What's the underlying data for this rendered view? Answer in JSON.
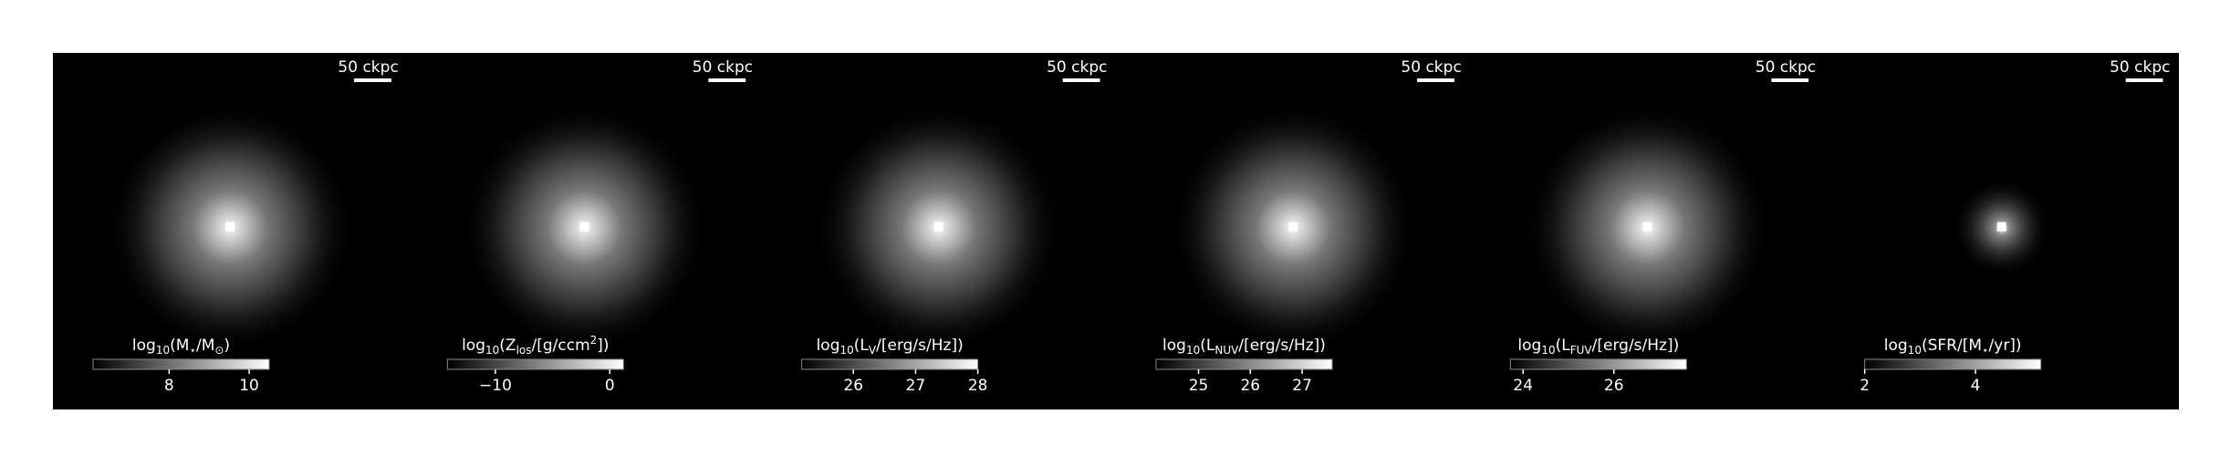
{
  "panels": [
    {
      "scale_label": "50 ckpc",
      "colorbar": {
        "label": [
          {
            "text": "log"
          },
          {
            "sub": "10"
          },
          {
            "text": "("
          },
          {
            "text": "M"
          },
          {
            "sub": "⋆"
          },
          {
            "text": "/"
          },
          {
            "text": "M"
          },
          {
            "sub": "⊙"
          },
          {
            "text": ")"
          }
        ],
        "range": [
          6.1,
          10.5
        ],
        "ticks": [
          8,
          10
        ]
      }
    },
    {
      "scale_label": "50 ckpc",
      "colorbar": {
        "label": [
          {
            "text": "log"
          },
          {
            "sub": "10"
          },
          {
            "text": "("
          },
          {
            "text": "Z"
          },
          {
            "sub": "los"
          },
          {
            "text": "/[g/ccm"
          },
          {
            "sup": "2"
          },
          {
            "text": "])"
          }
        ],
        "range": [
          -14.2,
          1.2
        ],
        "ticks": [
          {
            "value": -10,
            "label": "−10"
          },
          0
        ]
      }
    },
    {
      "scale_label": "50 ckpc",
      "colorbar": {
        "label": [
          {
            "text": "log"
          },
          {
            "sub": "10"
          },
          {
            "text": "("
          },
          {
            "text": "L"
          },
          {
            "sub": "V"
          },
          {
            "text": "/[erg/s/Hz])"
          }
        ],
        "range": [
          25.17,
          28.0
        ],
        "ticks": [
          26,
          27,
          28
        ]
      }
    },
    {
      "scale_label": "50 ckpc",
      "colorbar": {
        "label": [
          {
            "text": "log"
          },
          {
            "sub": "10"
          },
          {
            "text": "("
          },
          {
            "text": "L"
          },
          {
            "sub": "NUV"
          },
          {
            "text": "/[erg/s/Hz])"
          }
        ],
        "range": [
          24.18,
          27.58
        ],
        "ticks": [
          25,
          26,
          27
        ]
      }
    },
    {
      "scale_label": "50 ckpc",
      "colorbar": {
        "label": [
          {
            "text": "log"
          },
          {
            "sub": "10"
          },
          {
            "text": "("
          },
          {
            "text": "L"
          },
          {
            "sub": "FUV"
          },
          {
            "text": "/[erg/s/Hz])"
          }
        ],
        "range": [
          23.72,
          27.6
        ],
        "ticks": [
          24,
          26
        ]
      }
    },
    {
      "scale_label": "50 ckpc",
      "colorbar": {
        "label": [
          {
            "text": "log"
          },
          {
            "sub": "10"
          },
          {
            "text": "(SFR/[M"
          },
          {
            "sub": "⋆"
          },
          {
            "text": "/yr])"
          }
        ],
        "range": [
          2.0,
          5.18
        ],
        "ticks": [
          2,
          4
        ]
      }
    }
  ]
}
